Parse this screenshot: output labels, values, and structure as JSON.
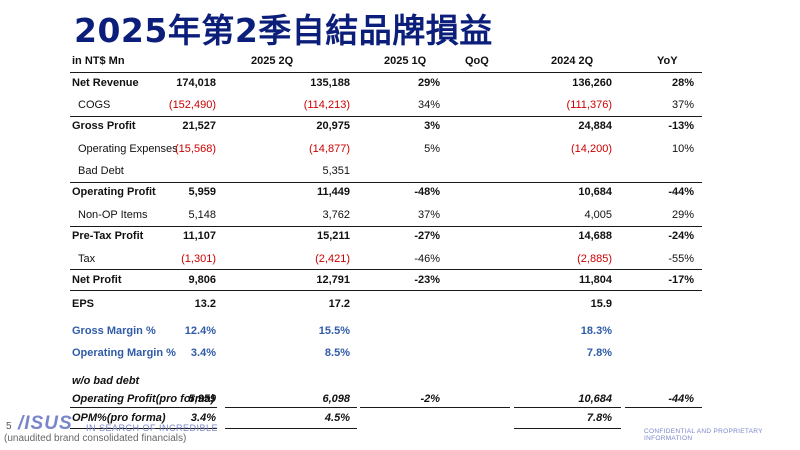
{
  "title": "2025年第2季自結品牌損益",
  "headers": [
    "in NT$ Mn",
    "2025 2Q",
    "2025 1Q",
    "QoQ",
    "2024 2Q",
    "YoY"
  ],
  "rows": [
    {
      "label": "Net Revenue",
      "v": [
        "174,018",
        "135,188",
        "29%",
        "136,260",
        "28%"
      ]
    },
    {
      "label": "COGS",
      "v": [
        "(152,490)",
        "(114,213)",
        "34%",
        "(111,376)",
        "37%"
      ]
    },
    {
      "label": "Gross Profit",
      "v": [
        "21,527",
        "20,975",
        "3%",
        "24,884",
        "-13%"
      ]
    },
    {
      "label": "Operating Expenses",
      "v": [
        "(15,568)",
        "(14,877)",
        "5%",
        "(14,200)",
        "10%"
      ]
    },
    {
      "label": "Bad Debt",
      "v": [
        "",
        "5,351",
        "",
        "",
        ""
      ]
    },
    {
      "label": "Operating Profit",
      "v": [
        "5,959",
        "11,449",
        "-48%",
        "10,684",
        "-44%"
      ]
    },
    {
      "label": "Non-OP Items",
      "v": [
        "5,148",
        "3,762",
        "37%",
        "4,005",
        "29%"
      ]
    },
    {
      "label": "Pre-Tax Profit",
      "v": [
        "11,107",
        "15,211",
        "-27%",
        "14,688",
        "-24%"
      ]
    },
    {
      "label": "Tax",
      "v": [
        "(1,301)",
        "(2,421)",
        "-46%",
        "(2,885)",
        "-55%"
      ]
    },
    {
      "label": "Net Profit",
      "v": [
        "9,806",
        "12,791",
        "-23%",
        "11,804",
        "-17%"
      ]
    },
    {
      "label": "EPS",
      "v": [
        "13.2",
        "17.2",
        "",
        "15.9",
        ""
      ]
    },
    {
      "label": "Gross Margin %",
      "v": [
        "12.4%",
        "15.5%",
        "",
        "18.3%",
        ""
      ]
    },
    {
      "label": "Operating Margin %",
      "v": [
        "3.4%",
        "8.5%",
        "",
        "7.8%",
        ""
      ]
    },
    {
      "label": "w/o bad debt",
      "v": [
        "",
        "",
        "",
        "",
        ""
      ]
    },
    {
      "label": "Operating Profit(pro forma)",
      "v": [
        "5,959",
        "6,098",
        "-2%",
        "10,684",
        "-44%"
      ]
    },
    {
      "label": "OPM%(pro forma)",
      "v": [
        "3.4%",
        "4.5%",
        "",
        "7.8%",
        ""
      ]
    }
  ],
  "footer": {
    "page_number": "5",
    "logo": "/ISUS",
    "tagline": "IN SEARCH OF INCREDIBLE",
    "note": "(unaudited brand consolidated financials)",
    "confidential": "CONFIDENTIAL AND PROPRIETARY INFORMATION"
  },
  "colors": {
    "title": "#0b1e7a",
    "negative": "#cc0000",
    "margin_rows": "#2f5ba8",
    "brand": "#7a86c9"
  }
}
